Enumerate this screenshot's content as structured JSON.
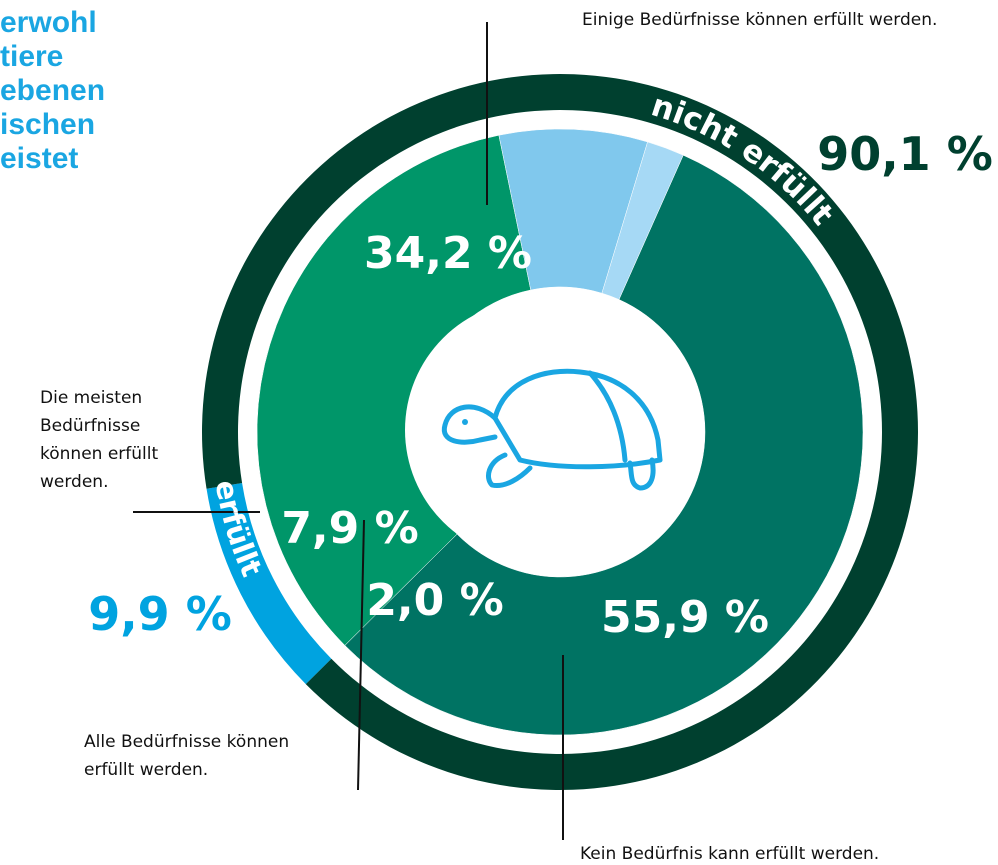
{
  "title_lines": [
    "erwohl",
    "tiere",
    "ebenen",
    "ischen",
    "eistet"
  ],
  "chart_data": {
    "type": "donut",
    "categories": [
      "Kein Bedürfnis kann erfüllt werden.",
      "Einige Bedürfnisse können erfüllt werden.",
      "Die meisten Bedürfnisse können erfüllt werden.",
      "Alle Bedürfnisse können erfüllt werden."
    ],
    "values": [
      55.9,
      34.2,
      7.9,
      2.0
    ],
    "value_labels": [
      "55,9 %",
      "34,2 %",
      "7,9 %",
      "2,0 %"
    ],
    "colors": [
      "#007363",
      "#009669",
      "#80c8ed",
      "#a6d9f5"
    ],
    "outer_ring": {
      "categories": [
        "erfüllt",
        "nicht erfüllt"
      ],
      "values": [
        9.9,
        90.1
      ],
      "value_labels": [
        "9,9 %",
        "90,1 %"
      ],
      "colors": [
        "#00a3e0",
        "#00402f"
      ]
    }
  }
}
